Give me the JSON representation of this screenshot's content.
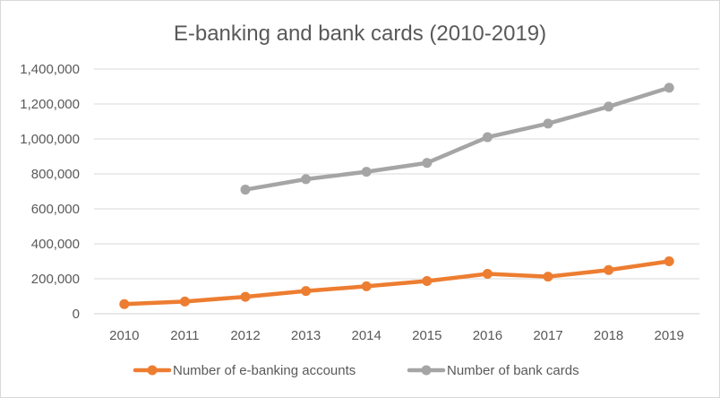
{
  "chart_data": {
    "type": "line",
    "title": "E-banking and bank cards (2010-2019)",
    "xlabel": "",
    "ylabel": "",
    "categories": [
      "2010",
      "2011",
      "2012",
      "2013",
      "2014",
      "2015",
      "2016",
      "2017",
      "2018",
      "2019"
    ],
    "ylim": [
      0,
      1400000
    ],
    "yticks": [
      0,
      200000,
      400000,
      600000,
      800000,
      1000000,
      1200000,
      1400000
    ],
    "ytick_labels": [
      "0",
      "200,000",
      "400,000",
      "600,000",
      "800,000",
      "1,000,000",
      "1,200,000",
      "1,400,000"
    ],
    "grid": "horizontal",
    "legend_position": "bottom",
    "series": [
      {
        "name": "Number of e-banking accounts",
        "color": "#ed7d31",
        "values": [
          55000,
          70000,
          97000,
          130000,
          157000,
          187000,
          228000,
          212000,
          250000,
          300000
        ]
      },
      {
        "name": "Number of bank cards",
        "color": "#a5a5a5",
        "values": [
          null,
          null,
          710000,
          770000,
          812000,
          863000,
          1010000,
          1088000,
          1185000,
          1293000
        ]
      }
    ]
  }
}
